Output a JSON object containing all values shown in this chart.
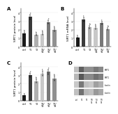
{
  "panel_A": {
    "label": "A",
    "ylabel": "SIRT1 protein level",
    "values": [
      1.6,
      3.5,
      1.4,
      1.5,
      2.9,
      2.0
    ],
    "colors": [
      "#1a1a1a",
      "#3a3a3a",
      "#b0b0b0",
      "#c8c8c8",
      "#787878",
      "#909090"
    ],
    "error": [
      0.12,
      0.28,
      0.1,
      0.12,
      0.22,
      0.16
    ],
    "ylim": [
      0,
      4.5
    ],
    "yticks": [
      0,
      1,
      2,
      3,
      4
    ],
    "markers": [
      "a",
      "c",
      "b",
      "b",
      "c",
      "b"
    ]
  },
  "panel_B": {
    "label": "B",
    "ylabel": "SIRT1 mRNA level",
    "values": [
      1.1,
      3.2,
      2.3,
      2.2,
      2.8,
      2.1
    ],
    "colors": [
      "#1a1a1a",
      "#3a3a3a",
      "#b0b0b0",
      "#c8c8c8",
      "#787878",
      "#909090"
    ],
    "error": [
      0.09,
      0.24,
      0.18,
      0.18,
      0.2,
      0.16
    ],
    "ylim": [
      0,
      4.5
    ],
    "yticks": [
      0,
      1,
      2,
      3,
      4
    ],
    "markers": [
      "a",
      "c",
      "b",
      "b",
      "c",
      "b"
    ]
  },
  "panel_C": {
    "label": "C",
    "ylabel": "SIRT1 protein level",
    "values": [
      0.6,
      3.0,
      2.3,
      3.2,
      3.4,
      2.6
    ],
    "colors": [
      "#1a1a1a",
      "#3a3a3a",
      "#b0b0b0",
      "#c8c8c8",
      "#787878",
      "#909090"
    ],
    "error": [
      0.06,
      0.26,
      0.2,
      0.28,
      0.28,
      0.22
    ],
    "ylim": [
      0,
      4.5
    ],
    "yticks": [
      0,
      1,
      2,
      3,
      4
    ],
    "markers": [
      "a",
      "c",
      "b",
      "c",
      "c",
      "b"
    ]
  },
  "panel_D_label": "D",
  "wb_row_labels": [
    "SIRT1",
    "SIRT1",
    "b-actin",
    "b-actin"
  ],
  "wb_col_labels": [
    "control",
    "T1",
    "T2",
    "T3+T4",
    "T5+T6",
    "T7+T8"
  ],
  "wb_bands": [
    [
      "#c0c0c0",
      "#606060",
      "#909090",
      "#909090",
      "#787878",
      "#888888"
    ],
    [
      "#b8b8b8",
      "#585858",
      "#8a8a8a",
      "#8a8a8a",
      "#707070",
      "#808080"
    ],
    [
      "#c8c8c8",
      "#787878",
      "#c0c0c0",
      "#c8c8c8",
      "#a0a0a0",
      "#b0b0b0"
    ],
    [
      "#c0c0c0",
      "#707070",
      "#b8b8b8",
      "#c0c0c0",
      "#989898",
      "#a8a8a8"
    ]
  ],
  "background_color": "#ffffff",
  "tick_label_fontsize": 2.5,
  "ylabel_fontsize": 3.0,
  "panel_label_fontsize": 5.0,
  "bar_width": 0.6,
  "xticklabels": [
    "ctrl",
    "T1",
    "T2",
    "T3/\nT4",
    "T5/\nT6",
    "T7/\nT8"
  ]
}
